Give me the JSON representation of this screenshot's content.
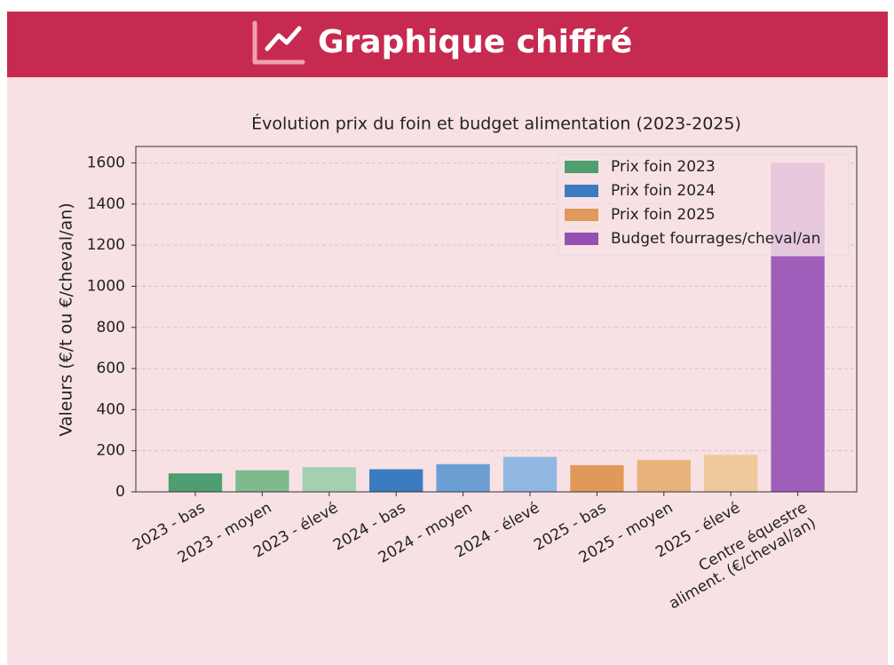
{
  "header": {
    "title": "Graphique chiffré"
  },
  "chart_data": {
    "type": "bar",
    "title": "Évolution prix du foin et budget alimentation (2023-2025)",
    "y_label": "Valeurs (€/t ou €/cheval/an)",
    "categories": [
      "2023 - bas",
      "2023 - moyen",
      "2023 - élevé",
      "2024 - bas",
      "2024 - moyen",
      "2024 - élevé",
      "2025 - bas",
      "2025 - moyen",
      "2025 - élevé",
      "Centre équestre\naliment. (€/cheval/an)"
    ],
    "values": [
      90,
      105,
      120,
      110,
      135,
      170,
      130,
      155,
      180,
      1600
    ],
    "colors": [
      "#4f9e70",
      "#7fba8f",
      "#a3d0b0",
      "#3b7bbf",
      "#6b9fd3",
      "#90b8e3",
      "#e0995b",
      "#e8b27b",
      "#efc89b",
      "#9550b4"
    ],
    "legend": [
      {
        "name": "Prix foin 2023",
        "color": "#4f9e70"
      },
      {
        "name": "Prix foin 2024",
        "color": "#3b7bbf"
      },
      {
        "name": "Prix foin 2025",
        "color": "#e0995b"
      },
      {
        "name": "Budget fourrages/cheval/an",
        "color": "#9550b4"
      }
    ],
    "legend_position": "upper right",
    "ylim": [
      0,
      1680
    ],
    "yticks": [
      0,
      200,
      400,
      600,
      800,
      1000,
      1200,
      1400,
      1600
    ],
    "grid": true
  }
}
